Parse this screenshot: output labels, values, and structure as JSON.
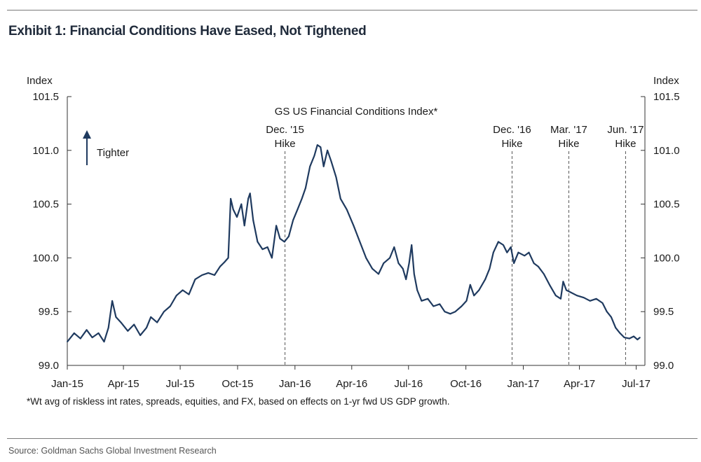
{
  "exhibit_title": "Exhibit 1: Financial Conditions Have Eased, Not Tightened",
  "source": "Source: Goldman Sachs Global Investment Research",
  "footnote": "*Wt avg of riskless int rates, spreads, equities, and FX, based on effects on 1-yr fwd US GDP growth.",
  "colors": {
    "series": "#1f3a5f",
    "axis": "#333333",
    "vline": "#555555"
  },
  "chart_data": {
    "type": "line",
    "title": "GS US Financial Conditions Index*",
    "ylabel_left": "Index",
    "ylabel_right": "Index",
    "ylim": [
      99.0,
      101.5
    ],
    "yticks": [
      "99.0",
      "99.5",
      "100.0",
      "100.5",
      "101.0",
      "101.5"
    ],
    "xlim": [
      "2015-01-01",
      "2017-07-15"
    ],
    "xticks": [
      {
        "date": "2015-01-01",
        "label": "Jan-15"
      },
      {
        "date": "2015-04-01",
        "label": "Apr-15"
      },
      {
        "date": "2015-07-01",
        "label": "Jul-15"
      },
      {
        "date": "2015-10-01",
        "label": "Oct-15"
      },
      {
        "date": "2016-01-01",
        "label": "Jan-16"
      },
      {
        "date": "2016-04-01",
        "label": "Apr-16"
      },
      {
        "date": "2016-07-01",
        "label": "Jul-16"
      },
      {
        "date": "2016-10-01",
        "label": "Oct-16"
      },
      {
        "date": "2017-01-01",
        "label": "Jan-17"
      },
      {
        "date": "2017-04-01",
        "label": "Apr-17"
      },
      {
        "date": "2017-07-01",
        "label": "Jul-17"
      }
    ],
    "grid": false,
    "legend": "none",
    "series": [
      {
        "points": [
          [
            "2015-01-01",
            99.22
          ],
          [
            "2015-01-12",
            99.3
          ],
          [
            "2015-01-22",
            99.25
          ],
          [
            "2015-02-01",
            99.33
          ],
          [
            "2015-02-10",
            99.26
          ],
          [
            "2015-02-20",
            99.3
          ],
          [
            "2015-03-01",
            99.22
          ],
          [
            "2015-03-08",
            99.35
          ],
          [
            "2015-03-14",
            99.6
          ],
          [
            "2015-03-20",
            99.45
          ],
          [
            "2015-03-28",
            99.4
          ],
          [
            "2015-04-08",
            99.32
          ],
          [
            "2015-04-18",
            99.38
          ],
          [
            "2015-04-28",
            99.28
          ],
          [
            "2015-05-08",
            99.35
          ],
          [
            "2015-05-15",
            99.45
          ],
          [
            "2015-05-25",
            99.4
          ],
          [
            "2015-06-05",
            99.5
          ],
          [
            "2015-06-15",
            99.55
          ],
          [
            "2015-06-25",
            99.65
          ],
          [
            "2015-07-05",
            99.7
          ],
          [
            "2015-07-15",
            99.66
          ],
          [
            "2015-07-25",
            99.8
          ],
          [
            "2015-08-05",
            99.84
          ],
          [
            "2015-08-15",
            99.86
          ],
          [
            "2015-08-25",
            99.84
          ],
          [
            "2015-09-03",
            99.92
          ],
          [
            "2015-09-10",
            99.96
          ],
          [
            "2015-09-16",
            100.0
          ],
          [
            "2015-09-20",
            100.55
          ],
          [
            "2015-09-24",
            100.45
          ],
          [
            "2015-09-30",
            100.38
          ],
          [
            "2015-10-07",
            100.5
          ],
          [
            "2015-10-12",
            100.3
          ],
          [
            "2015-10-18",
            100.55
          ],
          [
            "2015-10-21",
            100.6
          ],
          [
            "2015-10-26",
            100.35
          ],
          [
            "2015-11-02",
            100.15
          ],
          [
            "2015-11-10",
            100.08
          ],
          [
            "2015-11-18",
            100.1
          ],
          [
            "2015-11-25",
            100.0
          ],
          [
            "2015-12-02",
            100.3
          ],
          [
            "2015-12-08",
            100.18
          ],
          [
            "2015-12-15",
            100.15
          ],
          [
            "2015-12-22",
            100.2
          ],
          [
            "2015-12-29",
            100.35
          ],
          [
            "2016-01-05",
            100.45
          ],
          [
            "2016-01-12",
            100.55
          ],
          [
            "2016-01-18",
            100.65
          ],
          [
            "2016-01-25",
            100.85
          ],
          [
            "2016-02-01",
            100.95
          ],
          [
            "2016-02-06",
            101.05
          ],
          [
            "2016-02-11",
            101.03
          ],
          [
            "2016-02-16",
            100.85
          ],
          [
            "2016-02-22",
            101.0
          ],
          [
            "2016-02-28",
            100.9
          ],
          [
            "2016-03-07",
            100.75
          ],
          [
            "2016-03-14",
            100.55
          ],
          [
            "2016-03-24",
            100.45
          ],
          [
            "2016-04-04",
            100.3
          ],
          [
            "2016-04-14",
            100.15
          ],
          [
            "2016-04-24",
            100.0
          ],
          [
            "2016-05-04",
            99.9
          ],
          [
            "2016-05-14",
            99.85
          ],
          [
            "2016-05-22",
            99.95
          ],
          [
            "2016-06-01",
            100.0
          ],
          [
            "2016-06-08",
            100.1
          ],
          [
            "2016-06-15",
            99.95
          ],
          [
            "2016-06-22",
            99.9
          ],
          [
            "2016-06-27",
            99.8
          ],
          [
            "2016-07-02",
            99.95
          ],
          [
            "2016-07-06",
            100.12
          ],
          [
            "2016-07-10",
            99.85
          ],
          [
            "2016-07-15",
            99.7
          ],
          [
            "2016-07-22",
            99.6
          ],
          [
            "2016-08-01",
            99.62
          ],
          [
            "2016-08-10",
            99.55
          ],
          [
            "2016-08-20",
            99.57
          ],
          [
            "2016-08-28",
            99.5
          ],
          [
            "2016-09-06",
            99.48
          ],
          [
            "2016-09-14",
            99.5
          ],
          [
            "2016-09-24",
            99.55
          ],
          [
            "2016-10-02",
            99.6
          ],
          [
            "2016-10-08",
            99.75
          ],
          [
            "2016-10-14",
            99.65
          ],
          [
            "2016-10-22",
            99.7
          ],
          [
            "2016-11-01",
            99.8
          ],
          [
            "2016-11-08",
            99.9
          ],
          [
            "2016-11-14",
            100.05
          ],
          [
            "2016-11-22",
            100.15
          ],
          [
            "2016-11-30",
            100.12
          ],
          [
            "2016-12-06",
            100.05
          ],
          [
            "2016-12-12",
            100.1
          ],
          [
            "2016-12-17",
            99.95
          ],
          [
            "2016-12-24",
            100.05
          ],
          [
            "2017-01-03",
            100.02
          ],
          [
            "2017-01-10",
            100.05
          ],
          [
            "2017-01-18",
            99.95
          ],
          [
            "2017-01-25",
            99.92
          ],
          [
            "2017-02-03",
            99.85
          ],
          [
            "2017-02-12",
            99.75
          ],
          [
            "2017-02-22",
            99.65
          ],
          [
            "2017-03-02",
            99.62
          ],
          [
            "2017-03-06",
            99.78
          ],
          [
            "2017-03-11",
            99.7
          ],
          [
            "2017-03-18",
            99.68
          ],
          [
            "2017-03-28",
            99.65
          ],
          [
            "2017-04-08",
            99.63
          ],
          [
            "2017-04-18",
            99.6
          ],
          [
            "2017-04-28",
            99.62
          ],
          [
            "2017-05-08",
            99.58
          ],
          [
            "2017-05-15",
            99.5
          ],
          [
            "2017-05-22",
            99.45
          ],
          [
            "2017-05-29",
            99.35
          ],
          [
            "2017-06-05",
            99.3
          ],
          [
            "2017-06-12",
            99.26
          ],
          [
            "2017-06-20",
            99.25
          ],
          [
            "2017-06-27",
            99.27
          ],
          [
            "2017-07-03",
            99.24
          ],
          [
            "2017-07-07",
            99.26
          ]
        ]
      }
    ],
    "annotations": [
      {
        "date": "2015-12-16",
        "line1": "Dec. '15",
        "line2": "Hike"
      },
      {
        "date": "2016-12-14",
        "line1": "Dec. '16",
        "line2": "Hike"
      },
      {
        "date": "2017-03-15",
        "line1": "Mar. '17",
        "line2": "Hike"
      },
      {
        "date": "2017-06-14",
        "line1": "Jun. '17",
        "line2": "Hike"
      }
    ],
    "direction_label": "Tighter"
  }
}
